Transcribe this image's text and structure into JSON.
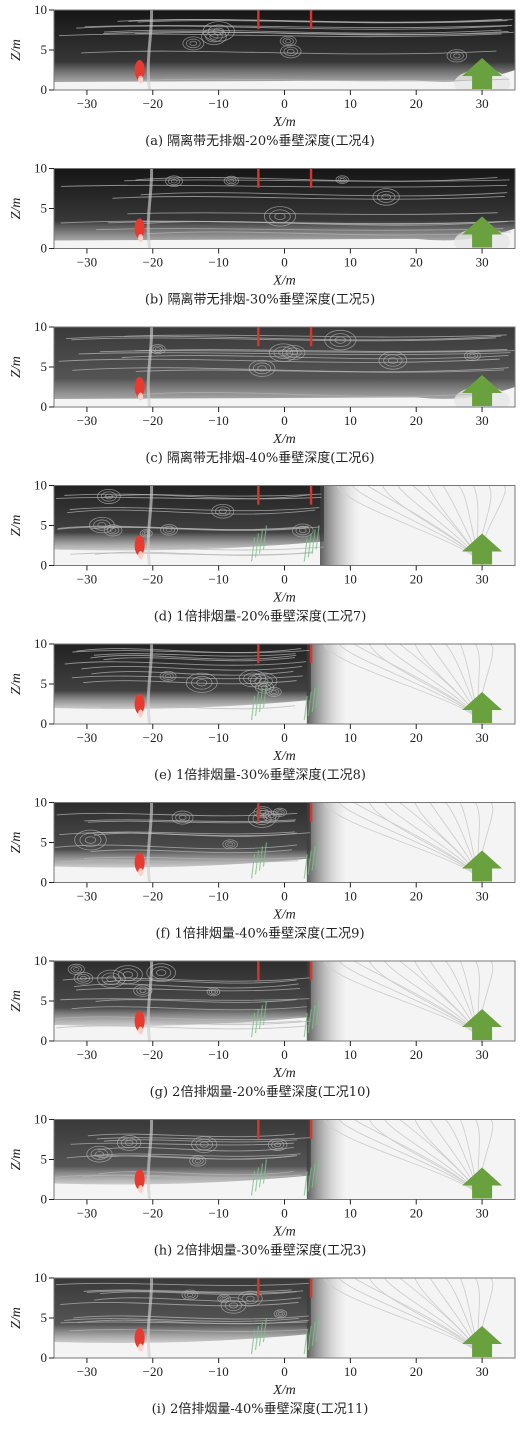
{
  "chart_data": [
    {
      "type": "streamline",
      "caption": "(a) 隔离带无排烟-20%垂壁深度(工况4)",
      "xlabel": "X/m",
      "ylabel": "Z/m",
      "xlim": [
        -35,
        35
      ],
      "ylim": [
        0,
        10
      ],
      "xticks": [
        -30,
        -20,
        -10,
        0,
        10,
        20,
        30
      ],
      "yticks": [
        0,
        5,
        10
      ],
      "smoke_extent": [
        -35,
        35
      ],
      "smoke_density": 0.95,
      "exhaust": false
    },
    {
      "type": "streamline",
      "caption": "(b) 隔离带无排烟-30%垂壁深度(工况5)",
      "xlabel": "X/m",
      "ylabel": "Z/m",
      "xlim": [
        -35,
        35
      ],
      "ylim": [
        0,
        10
      ],
      "xticks": [
        -30,
        -20,
        -10,
        0,
        10,
        20,
        30
      ],
      "yticks": [
        0,
        5,
        10
      ],
      "smoke_extent": [
        -35,
        35
      ],
      "smoke_density": 0.95,
      "exhaust": false
    },
    {
      "type": "streamline",
      "caption": "(c) 隔离带无排烟-40%垂壁深度(工况6)",
      "xlabel": "X/m",
      "ylabel": "Z/m",
      "xlim": [
        -35,
        35
      ],
      "ylim": [
        0,
        10
      ],
      "xticks": [
        -30,
        -20,
        -10,
        0,
        10,
        20,
        30
      ],
      "yticks": [
        0,
        5,
        10
      ],
      "smoke_extent": [
        -35,
        35
      ],
      "smoke_density": 0.8,
      "exhaust": false
    },
    {
      "type": "streamline",
      "caption": "(d) 1倍排烟量-20%垂壁深度(工况7)",
      "xlabel": "X/m",
      "ylabel": "Z/m",
      "xlim": [
        -35,
        35
      ],
      "ylim": [
        0,
        10
      ],
      "xticks": [
        -30,
        -20,
        -10,
        0,
        10,
        20,
        30
      ],
      "yticks": [
        0,
        5,
        10
      ],
      "smoke_extent": [
        -35,
        6
      ],
      "smoke_density": 0.9,
      "exhaust": true
    },
    {
      "type": "streamline",
      "caption": "(e) 1倍排烟量-30%垂壁深度(工况8)",
      "xlabel": "X/m",
      "ylabel": "Z/m",
      "xlim": [
        -35,
        35
      ],
      "ylim": [
        0,
        10
      ],
      "xticks": [
        -30,
        -20,
        -10,
        0,
        10,
        20,
        30
      ],
      "yticks": [
        0,
        5,
        10
      ],
      "smoke_extent": [
        -35,
        4
      ],
      "smoke_density": 0.9,
      "exhaust": true
    },
    {
      "type": "streamline",
      "caption": "(f) 1倍排烟量-40%垂壁深度(工况9)",
      "xlabel": "X/m",
      "ylabel": "Z/m",
      "xlim": [
        -35,
        35
      ],
      "ylim": [
        0,
        10
      ],
      "xticks": [
        -30,
        -20,
        -10,
        0,
        10,
        20,
        30
      ],
      "yticks": [
        0,
        5,
        10
      ],
      "smoke_extent": [
        -35,
        4
      ],
      "smoke_density": 0.85,
      "exhaust": true
    },
    {
      "type": "streamline",
      "caption": "(g) 2倍排烟量-20%垂壁深度(工况10)",
      "xlabel": "X/m",
      "ylabel": "Z/m",
      "xlim": [
        -35,
        35
      ],
      "ylim": [
        0,
        10
      ],
      "xticks": [
        -30,
        -20,
        -10,
        0,
        10,
        20,
        30
      ],
      "yticks": [
        0,
        5,
        10
      ],
      "smoke_extent": [
        -35,
        4
      ],
      "smoke_density": 0.85,
      "exhaust": true
    },
    {
      "type": "streamline",
      "caption": "(h) 2倍排烟量-30%垂壁深度(工况3)",
      "xlabel": "X/m",
      "ylabel": "Z/m",
      "xlim": [
        -35,
        35
      ],
      "ylim": [
        0,
        10
      ],
      "xticks": [
        -30,
        -20,
        -10,
        0,
        10,
        20,
        30
      ],
      "yticks": [
        0,
        5,
        10
      ],
      "smoke_extent": [
        -35,
        4
      ],
      "smoke_density": 0.8,
      "exhaust": true
    },
    {
      "type": "streamline",
      "caption": "(i) 2倍排烟量-40%垂壁深度(工况11)",
      "xlabel": "X/m",
      "ylabel": "Z/m",
      "xlim": [
        -35,
        35
      ],
      "ylim": [
        0,
        10
      ],
      "xticks": [
        -30,
        -20,
        -10,
        0,
        10,
        20,
        30
      ],
      "yticks": [
        0,
        5,
        10
      ],
      "smoke_extent": [
        -35,
        4
      ],
      "smoke_density": 0.8,
      "exhaust": true
    }
  ],
  "structure": {
    "smoke_curtains_x": [
      -4,
      4
    ],
    "fire_x": -22,
    "inlet_x": 30,
    "colors": {
      "smoke": "#0a0a0a",
      "streamline_dark": "#b4b4b4",
      "streamline_light": "#cfcfcf",
      "curtain": "#d8362a",
      "fire": "#e83a2e",
      "arrow": "#6aa13f",
      "exhaust": "#7fbf8a"
    }
  }
}
